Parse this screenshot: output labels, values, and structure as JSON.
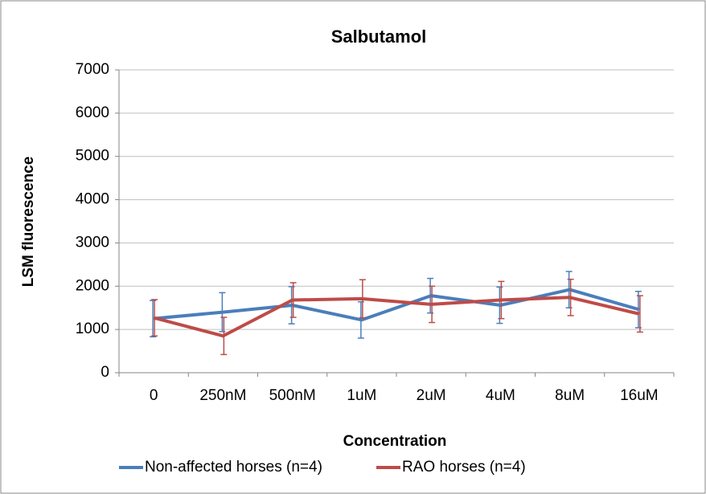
{
  "chart_data": {
    "type": "line",
    "title": "Salbutamol",
    "x_label": "Concentration",
    "y_label": "LSM fluorescence",
    "categories": [
      "0",
      "250nM",
      "500nM",
      "1uM",
      "2uM",
      "4uM",
      "8uM",
      "16uM"
    ],
    "series": [
      {
        "name": "Non-affected horses (n=4)",
        "color": "#4a7ebb",
        "values": [
          1250,
          1400,
          1560,
          1220,
          1780,
          1560,
          1920,
          1460
        ],
        "errors": [
          420,
          450,
          430,
          420,
          400,
          420,
          420,
          420
        ]
      },
      {
        "name": "RAO horses (n=4)",
        "color": "#be4b48",
        "values": [
          1270,
          850,
          1680,
          1710,
          1580,
          1680,
          1740,
          1360
        ],
        "errors": [
          420,
          430,
          400,
          440,
          420,
          430,
          420,
          420
        ]
      }
    ],
    "ylim": [
      0,
      7000
    ],
    "yticks": [
      0,
      1000,
      2000,
      3000,
      4000,
      5000,
      6000,
      7000
    ],
    "grid": true,
    "legend": "bottom"
  }
}
